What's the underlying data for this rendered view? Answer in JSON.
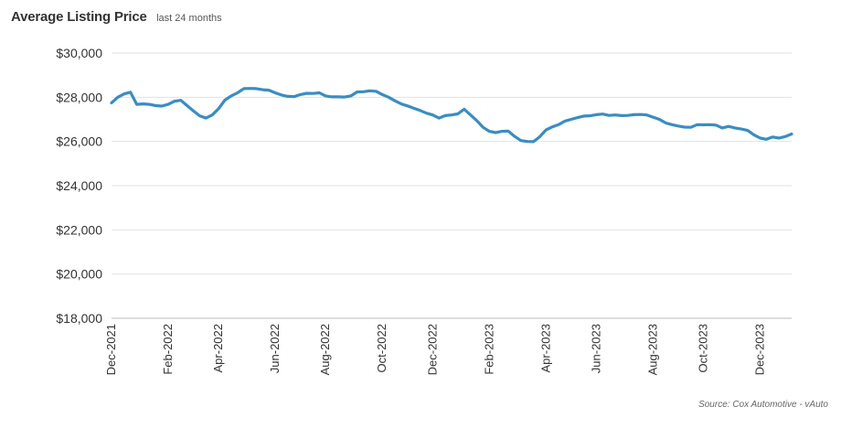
{
  "chart_data": {
    "type": "line",
    "title": "Average Listing Price",
    "subtitle": "last 24 months",
    "source": "Source: Cox Automotive - vAuto",
    "color": "#3a8dc1",
    "ylim": [
      18000,
      30000
    ],
    "y_ticks": [
      {
        "value": 30000,
        "label": "$30,000"
      },
      {
        "value": 28000,
        "label": "$28,000"
      },
      {
        "value": 26000,
        "label": "$26,000"
      },
      {
        "value": 24000,
        "label": "$24,000"
      },
      {
        "value": 22000,
        "label": "$22,000"
      },
      {
        "value": 20000,
        "label": "$20,000"
      },
      {
        "value": 18000,
        "label": "$18,000"
      }
    ],
    "x_ticks": [
      "Dec-2021",
      "Feb-2022",
      "Apr-2022",
      "Jun-2022",
      "Aug-2022",
      "Oct-2022",
      "Dec-2022",
      "Feb-2023",
      "Apr-2023",
      "Jun-2023",
      "Aug-2023",
      "Oct-2023",
      "Dec-2023"
    ],
    "grid": true,
    "series": [
      {
        "values": [
          27750,
          28000,
          28150,
          28230,
          27680,
          27700,
          27680,
          27620,
          27600,
          27680,
          27820,
          27860,
          27620,
          27380,
          27160,
          27060,
          27200,
          27480,
          27870,
          28060,
          28200,
          28390,
          28400,
          28390,
          28340,
          28320,
          28200,
          28100,
          28040,
          28030,
          28120,
          28180,
          28170,
          28200,
          28060,
          28020,
          28020,
          28010,
          28060,
          28240,
          28250,
          28290,
          28270,
          28120,
          28000,
          27840,
          27700,
          27610,
          27500,
          27400,
          27280,
          27200,
          27060,
          27170,
          27200,
          27250,
          27460,
          27200,
          26940,
          26640,
          26460,
          26400,
          26460,
          26470,
          26230,
          26040,
          26000,
          25990,
          26210,
          26520,
          26660,
          26760,
          26920,
          27000,
          27080,
          27150,
          27160,
          27210,
          27240,
          27180,
          27200,
          27170,
          27180,
          27210,
          27220,
          27200,
          27100,
          27000,
          26840,
          26760,
          26700,
          26650,
          26640,
          26760,
          26750,
          26760,
          26740,
          26610,
          26680,
          26610,
          26560,
          26500,
          26300,
          26150,
          26100,
          26200,
          26150,
          26220,
          26340
        ]
      }
    ]
  }
}
